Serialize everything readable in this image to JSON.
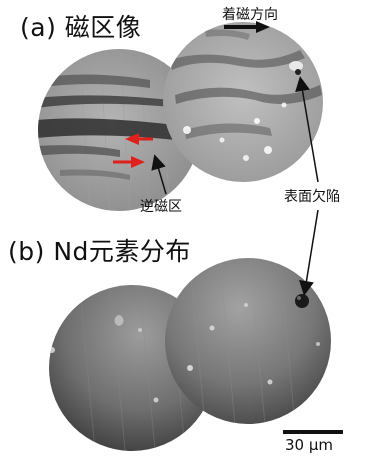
{
  "panel_a": {
    "label": "(a) 磁区像",
    "magnetization_label": "着磁方向",
    "reverse_domain_label": "逆磁区"
  },
  "panel_b": {
    "label": "(b) Nd元素分布"
  },
  "annotations": {
    "surface_defect_label": "表面欠陥"
  },
  "scale_bar": {
    "label": "30 μm"
  },
  "colors": {
    "arrow_red": "#e0201a",
    "arrow_black": "#111111"
  }
}
